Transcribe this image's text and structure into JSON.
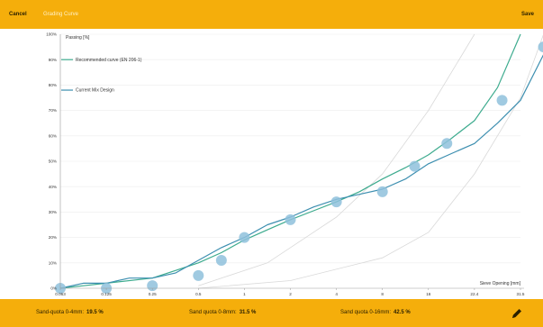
{
  "toolbar": {
    "cancel_label": "Cancel",
    "tab_label": "Grading Curve",
    "save_label": "Save"
  },
  "footer": {
    "stats": [
      {
        "label": "Sand-quota 0-4mm:",
        "value": "19.5 %"
      },
      {
        "label": "Sand quota 0-8mm:",
        "value": "31.5 %"
      },
      {
        "label": "Sand quota 0-16mm:",
        "value": "42.5 %"
      }
    ],
    "edit_icon": "pencil-icon"
  },
  "colors": {
    "accent": "#f5ae0b",
    "recommended": "#3dab8e",
    "current": "#3d8fb0",
    "marker": "#8fc1dc",
    "band": "#d9d9d9",
    "grid": "#ececec"
  },
  "chart_data": {
    "type": "line",
    "ylabel": "Passing [%]",
    "xlabel": "Sieve Opening [mm]",
    "x": [
      "0.063",
      "0.125",
      "0.25",
      "0.5",
      "1",
      "2",
      "4",
      "8",
      "16",
      "22.4",
      "31.5"
    ],
    "y_ticks": [
      "0%",
      "10%",
      "20%",
      "30%",
      "40%",
      "50%",
      "60%",
      "70%",
      "80%",
      "90%",
      "100%"
    ],
    "ylim": [
      0,
      100
    ],
    "grid": "horizontal",
    "legend_position": "top-left",
    "series": [
      {
        "name": "Recommended curve (EN 206-1)",
        "points": [
          [
            0,
            0
          ],
          [
            0.5,
            1
          ],
          [
            1,
            2
          ],
          [
            2,
            4
          ],
          [
            2.5,
            7
          ],
          [
            3,
            10
          ],
          [
            3.5,
            14
          ],
          [
            4,
            19
          ],
          [
            4.5,
            23
          ],
          [
            5,
            27
          ],
          [
            5.5,
            30.5
          ],
          [
            6,
            34
          ],
          [
            6.5,
            38
          ],
          [
            7,
            43
          ],
          [
            7.5,
            47.5
          ],
          [
            8,
            52.5
          ],
          [
            8.5,
            59
          ],
          [
            9,
            66
          ],
          [
            9.5,
            79
          ],
          [
            10,
            100
          ]
        ]
      },
      {
        "name": "Current Mix Design",
        "points": [
          [
            0,
            0
          ],
          [
            0.5,
            2
          ],
          [
            1,
            2
          ],
          [
            1.5,
            4
          ],
          [
            2,
            4
          ],
          [
            2.5,
            6
          ],
          [
            3,
            11
          ],
          [
            3.5,
            16
          ],
          [
            4,
            20
          ],
          [
            4.5,
            25
          ],
          [
            5,
            28
          ],
          [
            5.5,
            32
          ],
          [
            6,
            35
          ],
          [
            6.5,
            37
          ],
          [
            7,
            39
          ],
          [
            7.5,
            43
          ],
          [
            8,
            49
          ],
          [
            8.5,
            53
          ],
          [
            9,
            57
          ],
          [
            9.5,
            65
          ],
          [
            10,
            74
          ],
          [
            10.5,
            92
          ],
          [
            11,
            96
          ]
        ]
      }
    ],
    "markers": [
      [
        0,
        0
      ],
      [
        1,
        0
      ],
      [
        2,
        1
      ],
      [
        3,
        5
      ],
      [
        3.5,
        11
      ],
      [
        4,
        20
      ],
      [
        5,
        27
      ],
      [
        6,
        34
      ],
      [
        7,
        38
      ],
      [
        7.7,
        48
      ],
      [
        8.4,
        57
      ],
      [
        9.6,
        74
      ],
      [
        10.5,
        95
      ]
    ],
    "limit_curves": [
      {
        "name": "lower",
        "points": [
          [
            3,
            0
          ],
          [
            5,
            3
          ],
          [
            7,
            12
          ],
          [
            8,
            22
          ],
          [
            9,
            45
          ],
          [
            10,
            75
          ],
          [
            10.5,
            100
          ]
        ]
      },
      {
        "name": "upper",
        "points": [
          [
            3,
            1
          ],
          [
            4.5,
            10
          ],
          [
            6,
            28
          ],
          [
            7,
            45
          ],
          [
            8,
            70
          ],
          [
            9,
            100
          ]
        ]
      }
    ]
  }
}
